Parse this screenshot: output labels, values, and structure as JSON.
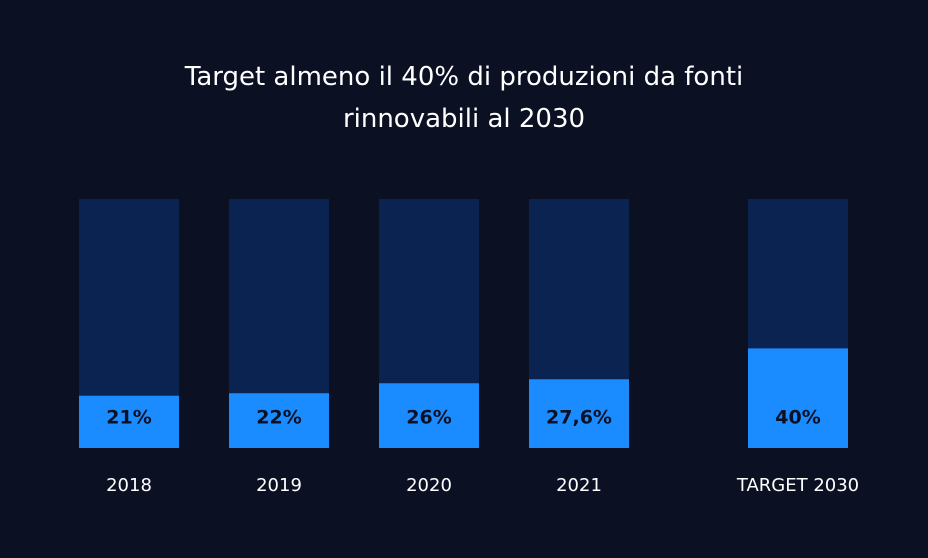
{
  "chart_data": {
    "type": "bar",
    "title": "Target almeno il 40% di produzioni da fonti rinnovabili al 2030",
    "categories": [
      "2018",
      "2019",
      "2020",
      "2021",
      "TARGET 2030"
    ],
    "values": [
      21,
      22,
      26,
      27.6,
      40
    ],
    "value_labels": [
      "21%",
      "22%",
      "26%",
      "27,6%",
      "40%"
    ],
    "color": "#1a8cff",
    "track_color": "#0a2350",
    "ylim": [
      0,
      100
    ]
  }
}
